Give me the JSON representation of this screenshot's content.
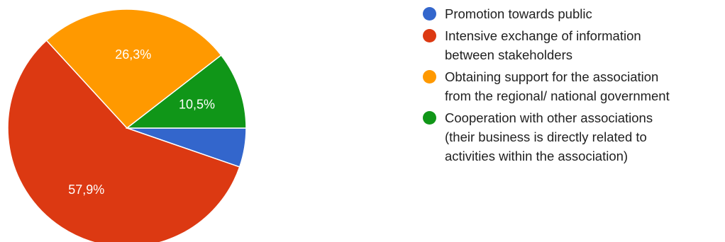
{
  "chart_data": {
    "type": "pie",
    "slices": [
      {
        "label": "Promotion towards public",
        "value": 5.3,
        "display": "",
        "color": "#3366cc"
      },
      {
        "label": "Intensive exchange of information\nbetween stakeholders",
        "value": 57.9,
        "display": "57,9%",
        "color": "#dc3912"
      },
      {
        "label": "Obtaining support for the association\nfrom the regional/ national government",
        "value": 26.3,
        "display": "26,3%",
        "color": "#ff9900"
      },
      {
        "label": "Cooperation with other associations\n(their business is directly related to\nactivities within the association)",
        "value": 10.5,
        "display": "10,5%",
        "color": "#109618"
      }
    ],
    "start": "3 o'clock",
    "direction": "clockwise",
    "legend_position": "right"
  }
}
